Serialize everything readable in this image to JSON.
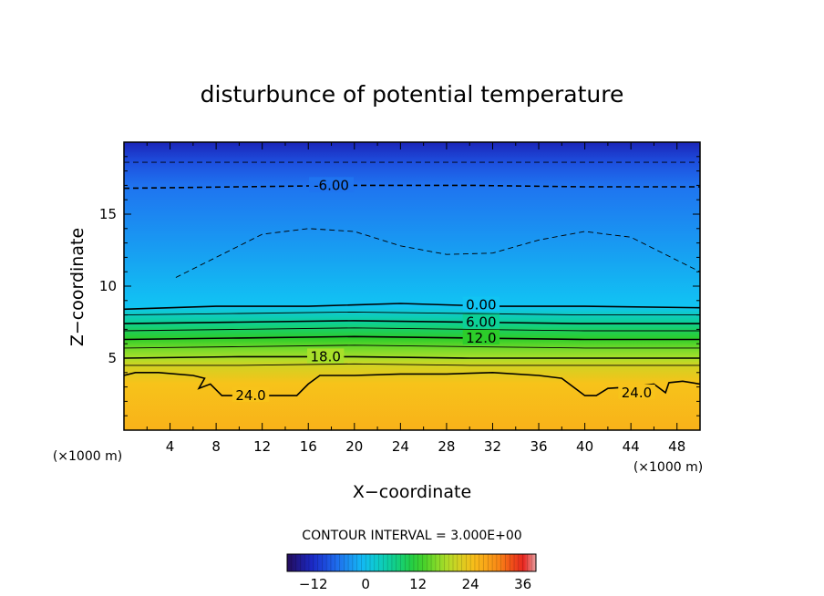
{
  "chart_data": {
    "type": "heatmap",
    "title": "disturbunce of potential temperature",
    "xlabel": "X−coordinate",
    "ylabel": "Z−coordinate",
    "x_unit_left": "(×1000 m)",
    "x_unit_right": "(×1000 m)",
    "xlim": [
      0,
      50
    ],
    "ylim": [
      0,
      20
    ],
    "x_ticks": [
      4,
      8,
      12,
      16,
      20,
      24,
      28,
      32,
      36,
      40,
      44,
      48
    ],
    "x_tick_labels": [
      "4",
      "8",
      "12",
      "16",
      "20",
      "24",
      "28",
      "32",
      "36",
      "40",
      "44",
      "48"
    ],
    "y_ticks": [
      5,
      10,
      15
    ],
    "y_tick_labels": [
      "5",
      "10",
      "15"
    ],
    "contour_interval_text": "CONTOUR INTERVAL = 3.000E+00",
    "contour_interval": 3,
    "colorbar": {
      "min": -18,
      "max": 39,
      "ticks": [
        -12,
        0,
        12,
        24,
        36
      ],
      "tick_labels": [
        "−12",
        "0",
        "12",
        "24",
        "36"
      ]
    },
    "contours": [
      {
        "level": -9,
        "style": "dashed",
        "z": [
          [
            0,
            18.6
          ],
          [
            50,
            18.6
          ]
        ]
      },
      {
        "level": -6,
        "label": "-6.00",
        "style": "dashed",
        "z": [
          [
            0,
            16.8
          ],
          [
            10,
            16.9
          ],
          [
            20,
            17.0
          ],
          [
            30,
            17.0
          ],
          [
            40,
            16.9
          ],
          [
            50,
            16.9
          ]
        ]
      },
      {
        "level": -3,
        "style": "dashed",
        "z": [
          [
            4.5,
            10.6
          ],
          [
            8,
            12.0
          ],
          [
            12,
            13.6
          ],
          [
            16,
            14.0
          ],
          [
            20,
            13.8
          ],
          [
            24,
            12.8
          ],
          [
            28,
            12.2
          ],
          [
            32,
            12.3
          ],
          [
            36,
            13.2
          ],
          [
            40,
            13.8
          ],
          [
            44,
            13.4
          ],
          [
            48,
            11.8
          ],
          [
            50,
            11.0
          ]
        ]
      },
      {
        "level": 0,
        "label": "0.00",
        "style": "solid",
        "z": [
          [
            0,
            8.4
          ],
          [
            8,
            8.6
          ],
          [
            16,
            8.6
          ],
          [
            24,
            8.8
          ],
          [
            32,
            8.6
          ],
          [
            40,
            8.6
          ],
          [
            50,
            8.5
          ]
        ]
      },
      {
        "level": 3,
        "style": "solid",
        "z": [
          [
            0,
            8.0
          ],
          [
            10,
            8.1
          ],
          [
            20,
            8.2
          ],
          [
            30,
            8.1
          ],
          [
            40,
            8.0
          ],
          [
            50,
            8.0
          ]
        ]
      },
      {
        "level": 6,
        "label": "6.00",
        "style": "solid",
        "z": [
          [
            0,
            7.4
          ],
          [
            10,
            7.5
          ],
          [
            20,
            7.6
          ],
          [
            30,
            7.5
          ],
          [
            40,
            7.4
          ],
          [
            50,
            7.4
          ]
        ]
      },
      {
        "level": 9,
        "style": "solid",
        "z": [
          [
            0,
            6.9
          ],
          [
            10,
            7.0
          ],
          [
            20,
            7.1
          ],
          [
            30,
            7.0
          ],
          [
            40,
            6.9
          ],
          [
            50,
            6.9
          ]
        ]
      },
      {
        "level": 12,
        "label": "12.0",
        "style": "solid",
        "z": [
          [
            0,
            6.3
          ],
          [
            10,
            6.4
          ],
          [
            20,
            6.5
          ],
          [
            30,
            6.4
          ],
          [
            40,
            6.3
          ],
          [
            50,
            6.3
          ]
        ]
      },
      {
        "level": 15,
        "style": "solid",
        "z": [
          [
            0,
            5.7
          ],
          [
            10,
            5.8
          ],
          [
            20,
            5.9
          ],
          [
            30,
            5.8
          ],
          [
            40,
            5.7
          ],
          [
            50,
            5.7
          ]
        ]
      },
      {
        "level": 18,
        "label": "18.0",
        "style": "solid",
        "z": [
          [
            0,
            5.0
          ],
          [
            10,
            5.1
          ],
          [
            20,
            5.1
          ],
          [
            30,
            5.0
          ],
          [
            40,
            5.0
          ],
          [
            50,
            5.0
          ]
        ]
      },
      {
        "level": 21,
        "style": "solid",
        "z": [
          [
            0,
            4.5
          ],
          [
            10,
            4.5
          ],
          [
            20,
            4.6
          ],
          [
            30,
            4.5
          ],
          [
            40,
            4.5
          ],
          [
            50,
            4.5
          ]
        ]
      },
      {
        "level": 24,
        "label": "24.0",
        "style": "solid",
        "z": [
          [
            0,
            3.8
          ],
          [
            1,
            4.0
          ],
          [
            3,
            4.0
          ],
          [
            6,
            3.8
          ],
          [
            7,
            3.6
          ],
          [
            6.5,
            2.9
          ],
          [
            7.5,
            3.2
          ],
          [
            8.5,
            2.4
          ],
          [
            10,
            2.4
          ],
          [
            13,
            2.4
          ],
          [
            15,
            2.4
          ],
          [
            16,
            3.2
          ],
          [
            17,
            3.8
          ],
          [
            20,
            3.8
          ],
          [
            24,
            3.9
          ],
          [
            28,
            3.9
          ],
          [
            32,
            4.0
          ],
          [
            36,
            3.8
          ],
          [
            38,
            3.6
          ],
          [
            40,
            2.4
          ],
          [
            41,
            2.4
          ],
          [
            42,
            2.9
          ],
          [
            44,
            3.0
          ],
          [
            46,
            3.2
          ],
          [
            47,
            2.6
          ],
          [
            47.3,
            3.3
          ],
          [
            48.5,
            3.4
          ],
          [
            50,
            3.2
          ]
        ]
      }
    ]
  }
}
